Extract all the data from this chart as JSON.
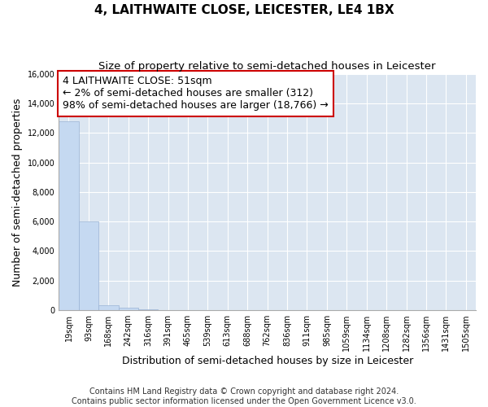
{
  "title": "4, LAITHWAITE CLOSE, LEICESTER, LE4 1BX",
  "subtitle": "Size of property relative to semi-detached houses in Leicester",
  "xlabel": "Distribution of semi-detached houses by size in Leicester",
  "ylabel": "Number of semi-detached properties",
  "footnote1": "Contains HM Land Registry data © Crown copyright and database right 2024.",
  "footnote2": "Contains public sector information licensed under the Open Government Licence v3.0.",
  "annotation_title": "4 LAITHWAITE CLOSE: 51sqm",
  "annotation_line1": "← 2% of semi-detached houses are smaller (312)",
  "annotation_line2": "98% of semi-detached houses are larger (18,766) →",
  "bar_labels": [
    "19sqm",
    "93sqm",
    "168sqm",
    "242sqm",
    "316sqm",
    "391sqm",
    "465sqm",
    "539sqm",
    "613sqm",
    "688sqm",
    "762sqm",
    "836sqm",
    "911sqm",
    "985sqm",
    "1059sqm",
    "1134sqm",
    "1208sqm",
    "1282sqm",
    "1356sqm",
    "1431sqm",
    "1505sqm"
  ],
  "bar_values": [
    12800,
    6000,
    350,
    150,
    60,
    20,
    10,
    6,
    4,
    3,
    2,
    2,
    1,
    1,
    1,
    1,
    1,
    1,
    1,
    1,
    1
  ],
  "bar_color": "#c5d9f1",
  "bar_edge_color": "#9ab3d5",
  "ylim": [
    0,
    16000
  ],
  "yticks": [
    0,
    2000,
    4000,
    6000,
    8000,
    10000,
    12000,
    14000,
    16000
  ],
  "figure_bg_color": "#ffffff",
  "plot_bg_color": "#dce6f1",
  "annotation_box_color": "white",
  "annotation_box_edge": "#cc0000",
  "grid_color": "#ffffff",
  "title_fontsize": 11,
  "subtitle_fontsize": 9.5,
  "axis_label_fontsize": 9,
  "tick_fontsize": 7,
  "annotation_fontsize": 9,
  "footnote_fontsize": 7
}
